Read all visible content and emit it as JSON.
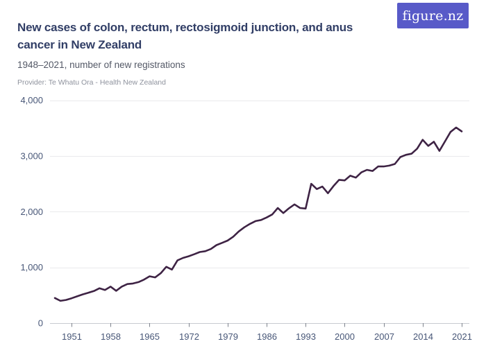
{
  "header": {
    "title": "New cases of colon, rectum, rectosigmoid junction, and anus cancer in New Zealand",
    "subtitle": "1948–2021, number of new registrations",
    "provider": "Provider: Te Whatu Ora - Health New Zealand",
    "logo_text": "figure.nz",
    "logo_bg": "#585AC8"
  },
  "chart_data": {
    "type": "line",
    "title": "New cases of colon, rectum, rectosigmoid junction, and anus cancer in New Zealand",
    "subtitle": "1948-2021, number of new registrations",
    "xlabel": "",
    "ylabel": "",
    "x": [
      1948,
      1949,
      1950,
      1951,
      1952,
      1953,
      1954,
      1955,
      1956,
      1957,
      1958,
      1959,
      1960,
      1961,
      1962,
      1963,
      1964,
      1965,
      1966,
      1967,
      1968,
      1969,
      1970,
      1971,
      1972,
      1973,
      1974,
      1975,
      1976,
      1977,
      1978,
      1979,
      1980,
      1981,
      1982,
      1983,
      1984,
      1985,
      1986,
      1987,
      1988,
      1989,
      1990,
      1991,
      1992,
      1993,
      1994,
      1995,
      1996,
      1997,
      1998,
      1999,
      2000,
      2001,
      2002,
      2003,
      2004,
      2005,
      2006,
      2007,
      2008,
      2009,
      2010,
      2011,
      2012,
      2013,
      2014,
      2015,
      2016,
      2017,
      2018,
      2019,
      2020,
      2021
    ],
    "series": [
      {
        "name": "Number of new registrations",
        "values": [
          450,
          400,
          415,
          445,
          480,
          515,
          545,
          575,
          625,
          595,
          655,
          580,
          655,
          700,
          710,
          735,
          780,
          840,
          820,
          895,
          1010,
          960,
          1125,
          1170,
          1200,
          1235,
          1275,
          1290,
          1330,
          1400,
          1440,
          1480,
          1550,
          1645,
          1720,
          1780,
          1830,
          1850,
          1895,
          1950,
          2065,
          1975,
          2060,
          2130,
          2065,
          2055,
          2500,
          2405,
          2450,
          2330,
          2460,
          2570,
          2560,
          2645,
          2610,
          2705,
          2750,
          2730,
          2810,
          2810,
          2825,
          2855,
          2980,
          3020,
          3040,
          3130,
          3290,
          3180,
          3255,
          3090,
          3260,
          3430,
          3510,
          3440
        ]
      }
    ],
    "x_tick_labels": [
      "1951",
      "1958",
      "1965",
      "1972",
      "1979",
      "1986",
      "1993",
      "2000",
      "2007",
      "2014",
      "2021"
    ],
    "y_ticks": [
      {
        "value": 0,
        "label": "0"
      },
      {
        "value": 1000,
        "label": "1,000"
      },
      {
        "value": 2000,
        "label": "2,000"
      },
      {
        "value": 3000,
        "label": "3,000"
      },
      {
        "value": 4000,
        "label": "4,000"
      }
    ],
    "xlim": [
      1948,
      2021
    ],
    "ylim": [
      0,
      4000
    ],
    "grid": true,
    "legend": false,
    "line_color": "#3E2344",
    "grid_color": "#E9EAEC",
    "axis_color": "#C7CAD0",
    "tick_color": "#7E838D",
    "label_color": "#475677"
  }
}
